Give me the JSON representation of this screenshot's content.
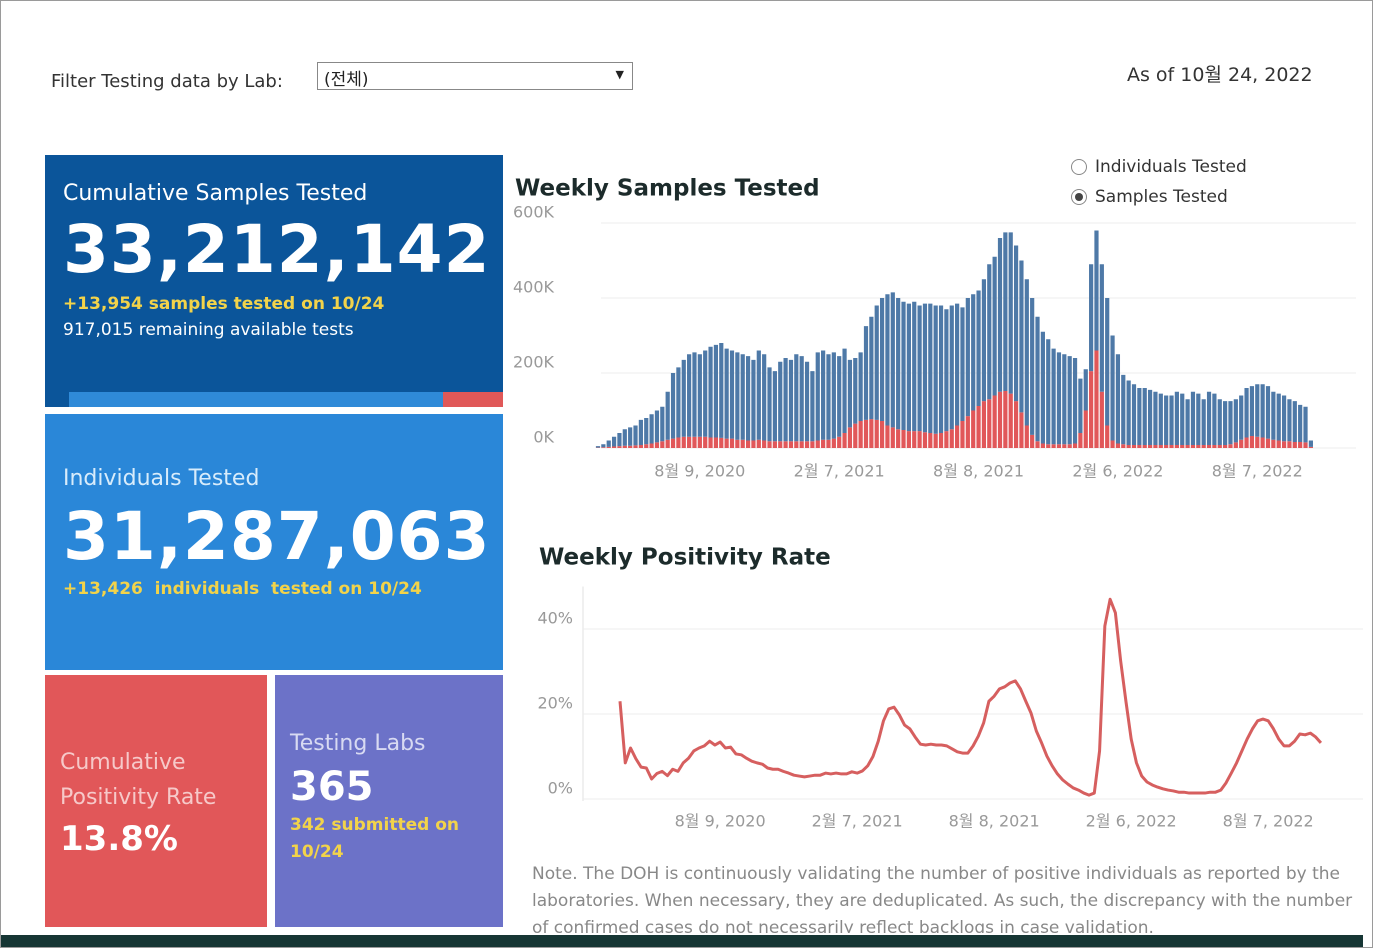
{
  "header": {
    "filter_label": "Filter Testing data by Lab:",
    "filter_value": "(전체)",
    "as_of": "As of 10월 24, 2022"
  },
  "cards": {
    "samples": {
      "title": "Cumulative Samples Tested",
      "value": "33,212,142",
      "new": "+13,954 samples tested on 10/24",
      "remaining": "917,015 remaining available tests"
    },
    "individuals": {
      "title": "Individuals Tested",
      "value": "31,287,063",
      "new": "+13,426  individuals  tested on 10/24"
    },
    "positivity": {
      "title": "Cumulative Positivity Rate",
      "value": "13.8%"
    },
    "labs": {
      "title": "Testing Labs",
      "value": "365",
      "submitted": "342 submitted on 10/24"
    }
  },
  "toggle": {
    "options": [
      "Individuals Tested",
      "Samples Tested"
    ],
    "selected": "Samples Tested"
  },
  "note": "Note. The DOH is continuously validating the number of positive individuals as reported by the laboratories. When necessary, they are deduplicated. As such, the discrepancy with the number of confirmed cases do not necessarily reflect backlogs in case validation.",
  "chart_data": [
    {
      "type": "bar",
      "title": "Weekly Samples Tested",
      "stacked": true,
      "grid": true,
      "categories": [
        null,
        null,
        null,
        null,
        null,
        null,
        null,
        null,
        null,
        null,
        null,
        null,
        null,
        null,
        null,
        null,
        null,
        null,
        null,
        "8월 9, 2020",
        null,
        null,
        null,
        null,
        null,
        null,
        null,
        null,
        null,
        null,
        null,
        null,
        null,
        null,
        null,
        null,
        null,
        null,
        null,
        null,
        null,
        null,
        null,
        null,
        null,
        "2월 7, 2021",
        null,
        null,
        null,
        null,
        null,
        null,
        null,
        null,
        null,
        null,
        null,
        null,
        null,
        null,
        null,
        null,
        null,
        null,
        null,
        null,
        null,
        null,
        null,
        null,
        null,
        "8월 8, 2021",
        null,
        null,
        null,
        null,
        null,
        null,
        null,
        null,
        null,
        null,
        null,
        null,
        null,
        null,
        null,
        null,
        null,
        null,
        null,
        null,
        null,
        null,
        null,
        null,
        null,
        "2월 6, 2022",
        null,
        null,
        null,
        null,
        null,
        null,
        null,
        null,
        null,
        null,
        null,
        null,
        null,
        null,
        null,
        null,
        null,
        null,
        null,
        null,
        null,
        null,
        null,
        null,
        null,
        "8월 7, 2022",
        null,
        null,
        null,
        null,
        null,
        null,
        null,
        null,
        null,
        null
      ],
      "series": [
        {
          "color": "#e15759",
          "values": [
            1000,
            2000,
            3000,
            4000,
            5000,
            6000,
            6000,
            7000,
            8000,
            10000,
            12000,
            15000,
            18000,
            22000,
            25000,
            28000,
            30000,
            30000,
            30000,
            30000,
            30000,
            28000,
            28000,
            27000,
            25000,
            25000,
            22000,
            22000,
            20000,
            20000,
            22000,
            20000,
            18000,
            18000,
            18000,
            18000,
            18000,
            18000,
            18000,
            18000,
            18000,
            20000,
            22000,
            22000,
            25000,
            30000,
            40000,
            55000,
            65000,
            72000,
            75000,
            77000,
            75000,
            72000,
            60000,
            55000,
            50000,
            48000,
            45000,
            45000,
            45000,
            42000,
            40000,
            38000,
            40000,
            45000,
            50000,
            60000,
            72000,
            85000,
            100000,
            112000,
            125000,
            130000,
            140000,
            150000,
            152000,
            145000,
            125000,
            95000,
            60000,
            35000,
            18000,
            12000,
            10000,
            10000,
            10000,
            10000,
            10000,
            12000,
            40000,
            100000,
            205000,
            260000,
            150000,
            60000,
            20000,
            12000,
            10000,
            8000,
            8000,
            8000,
            8000,
            8000,
            8000,
            8000,
            8000,
            8000,
            8000,
            8000,
            8000,
            8000,
            8000,
            8000,
            8000,
            8000,
            8000,
            8000,
            10000,
            15000,
            22000,
            28000,
            32000,
            30000,
            28000,
            25000,
            22000,
            20000,
            18000,
            18000,
            16000,
            16000,
            15000,
            3000
          ]
        },
        {
          "color": "#4e79a7",
          "values": [
            4000,
            8000,
            17000,
            26000,
            35000,
            44000,
            49000,
            53000,
            67000,
            70000,
            78000,
            85000,
            92000,
            128000,
            175000,
            187000,
            205000,
            220000,
            225000,
            220000,
            230000,
            242000,
            247000,
            253000,
            240000,
            235000,
            233000,
            228000,
            225000,
            215000,
            238000,
            230000,
            197000,
            187000,
            212000,
            222000,
            217000,
            232000,
            227000,
            212000,
            187000,
            235000,
            238000,
            228000,
            230000,
            215000,
            225000,
            180000,
            175000,
            183000,
            250000,
            273000,
            305000,
            328000,
            350000,
            360000,
            350000,
            342000,
            340000,
            345000,
            335000,
            343000,
            345000,
            342000,
            340000,
            325000,
            330000,
            325000,
            303000,
            315000,
            310000,
            308000,
            325000,
            360000,
            370000,
            410000,
            423000,
            430000,
            415000,
            405000,
            390000,
            365000,
            332000,
            298000,
            280000,
            255000,
            245000,
            240000,
            235000,
            228000,
            145000,
            110000,
            285000,
            320000,
            340000,
            340000,
            280000,
            238000,
            185000,
            172000,
            162000,
            152000,
            152000,
            147000,
            142000,
            137000,
            132000,
            132000,
            142000,
            137000,
            122000,
            142000,
            137000,
            122000,
            142000,
            137000,
            122000,
            117000,
            115000,
            115000,
            118000,
            132000,
            133000,
            140000,
            142000,
            140000,
            128000,
            125000,
            122000,
            112000,
            109000,
            99000,
            95000,
            17000
          ]
        }
      ],
      "ylim": [
        0,
        620000
      ],
      "yticks": [
        {
          "value": 0,
          "label": "0K"
        },
        {
          "value": 200000,
          "label": "200K"
        },
        {
          "value": 400000,
          "label": "400K"
        },
        {
          "value": 600000,
          "label": "600K"
        }
      ]
    },
    {
      "type": "line",
      "title": "Weekly Positivity Rate",
      "grid": true,
      "categories": [
        null,
        null,
        null,
        null,
        null,
        null,
        null,
        null,
        null,
        null,
        null,
        null,
        null,
        null,
        null,
        null,
        null,
        null,
        null,
        "8월 9, 2020",
        null,
        null,
        null,
        null,
        null,
        null,
        null,
        null,
        null,
        null,
        null,
        null,
        null,
        null,
        null,
        null,
        null,
        null,
        null,
        null,
        null,
        null,
        null,
        null,
        null,
        "2월 7, 2021",
        null,
        null,
        null,
        null,
        null,
        null,
        null,
        null,
        null,
        null,
        null,
        null,
        null,
        null,
        null,
        null,
        null,
        null,
        null,
        null,
        null,
        null,
        null,
        null,
        null,
        "8월 8, 2021",
        null,
        null,
        null,
        null,
        null,
        null,
        null,
        null,
        null,
        null,
        null,
        null,
        null,
        null,
        null,
        null,
        null,
        null,
        null,
        null,
        null,
        null,
        null,
        null,
        null,
        "2월 6, 2022",
        null,
        null,
        null,
        null,
        null,
        null,
        null,
        null,
        null,
        null,
        null,
        null,
        null,
        null,
        null,
        null,
        null,
        null,
        null,
        null,
        null,
        null,
        null,
        null,
        null,
        "8월 7, 2022",
        null,
        null,
        null,
        null,
        null,
        null,
        null,
        null,
        null,
        null
      ],
      "series": [
        {
          "color": "#d65f5f",
          "values": [
            23,
            8.5,
            12,
            9.5,
            7.5,
            7.3,
            4.7,
            6,
            6.5,
            5.5,
            7,
            6.5,
            8.5,
            9.6,
            11.3,
            12,
            12.5,
            13.6,
            12.7,
            13.4,
            12,
            12.2,
            10.6,
            10.4,
            9.6,
            8.9,
            8.5,
            8.2,
            7.3,
            7,
            7,
            6.5,
            6.1,
            5.6,
            5.4,
            5.2,
            5.4,
            5.6,
            5.6,
            6.1,
            5.9,
            6.1,
            5.9,
            5.9,
            6.4,
            6.1,
            6.6,
            7.8,
            10,
            13.6,
            18.4,
            21.2,
            21.6,
            19.8,
            17.4,
            16.5,
            14.6,
            12.9,
            12.7,
            12.9,
            12.7,
            12.7,
            12.5,
            11.8,
            11.1,
            10.8,
            10.8,
            12.5,
            14.8,
            17.9,
            23,
            24.2,
            25.9,
            26.4,
            27.3,
            27.8,
            25.9,
            23,
            20.2,
            16,
            13.2,
            10.1,
            7.8,
            5.9,
            4.5,
            3.5,
            2.6,
            2.1,
            1.4,
            0.9,
            1.4,
            11.3,
            40.7,
            47,
            43.8,
            32.5,
            23,
            14.1,
            8.5,
            5.4,
            4,
            3.3,
            2.8,
            2.4,
            2.1,
            1.9,
            1.6,
            1.6,
            1.4,
            1.4,
            1.4,
            1.4,
            1.6,
            1.6,
            2.1,
            3.8,
            6.1,
            8.5,
            11.3,
            14.1,
            16.5,
            18.4,
            18.8,
            18.4,
            16.5,
            14.1,
            12.5,
            12.5,
            13.6,
            15.3,
            15.1,
            15.5,
            14.6,
            13.2
          ]
        }
      ],
      "ylim": [
        0,
        50
      ],
      "yticks": [
        {
          "value": 0,
          "label": "0%"
        },
        {
          "value": 20,
          "label": "20%"
        },
        {
          "value": 40,
          "label": "40%"
        }
      ]
    }
  ]
}
